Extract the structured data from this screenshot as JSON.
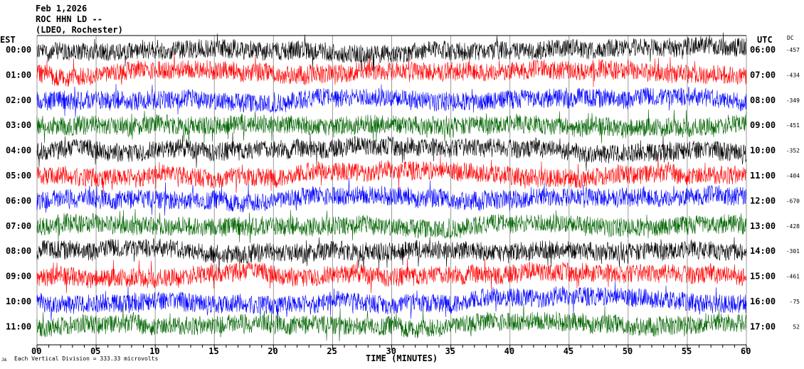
{
  "header": {
    "date": "Feb 1,2026",
    "station": "ROC HHN LD --",
    "network": "(LDEO, Rochester)"
  },
  "footer": {
    "scale_text": "Each Vertical Division =  333.33 microvolts",
    "logo_text": "JA"
  },
  "chart_data": {
    "type": "line",
    "title": "",
    "xlabel": "TIME (MINUTES)",
    "xlim": [
      0,
      60
    ],
    "x_tick_labels": [
      "00",
      "05",
      "10",
      "15",
      "20",
      "25",
      "30",
      "35",
      "40",
      "45",
      "50",
      "55",
      "60"
    ],
    "left_axis_title": "EST",
    "right_axis_title": "UTC",
    "dc_title": "DC",
    "grid": "vertical every 5 minutes",
    "trace_colors": [
      "#000000",
      "#ff0000",
      "#0000ff",
      "#006400"
    ],
    "rows": [
      {
        "est": "00:00",
        "utc": "06:00",
        "dc": "-457"
      },
      {
        "est": "01:00",
        "utc": "07:00",
        "dc": "-434"
      },
      {
        "est": "02:00",
        "utc": "08:00",
        "dc": "-349"
      },
      {
        "est": "03:00",
        "utc": "09:00",
        "dc": "-451"
      },
      {
        "est": "04:00",
        "utc": "10:00",
        "dc": "-352"
      },
      {
        "est": "05:00",
        "utc": "11:00",
        "dc": "-404"
      },
      {
        "est": "06:00",
        "utc": "12:00",
        "dc": "-670"
      },
      {
        "est": "07:00",
        "utc": "13:00",
        "dc": "-428"
      },
      {
        "est": "08:00",
        "utc": "14:00",
        "dc": "-301"
      },
      {
        "est": "09:00",
        "utc": "15:00",
        "dc": "-461"
      },
      {
        "est": "10:00",
        "utc": "16:00",
        "dc": "-75"
      },
      {
        "est": "11:00",
        "utc": "17:00",
        "dc": "52"
      }
    ]
  }
}
